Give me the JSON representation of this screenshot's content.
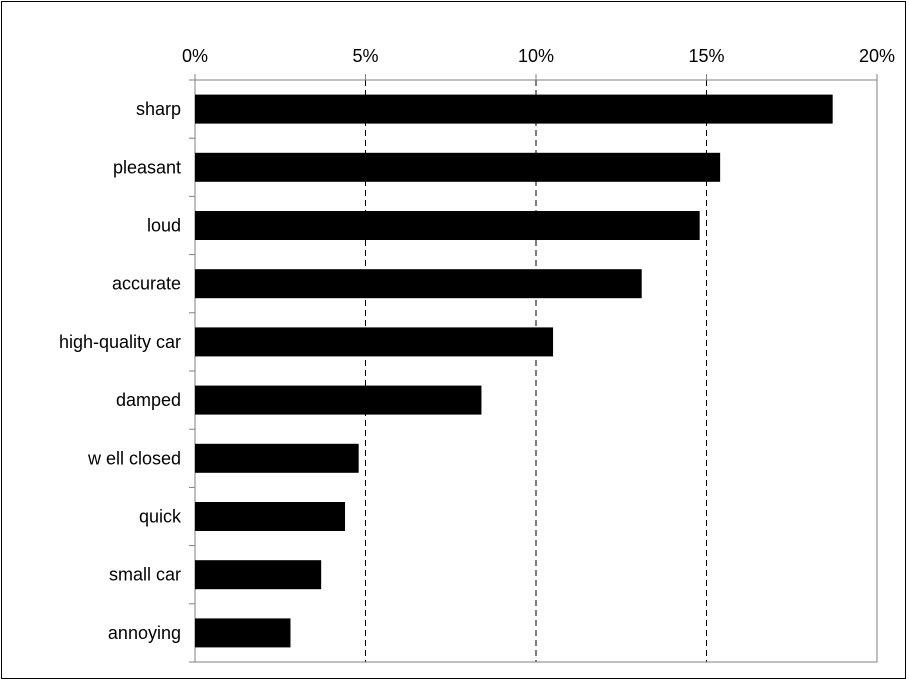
{
  "chart_data": {
    "type": "bar",
    "orientation": "horizontal",
    "categories": [
      "sharp",
      "pleasant",
      "loud",
      "accurate",
      "high-quality car",
      "damped",
      "w ell closed",
      "quick",
      "small car",
      "annoying"
    ],
    "values": [
      0.187,
      0.154,
      0.148,
      0.131,
      0.105,
      0.084,
      0.048,
      0.044,
      0.037,
      0.028
    ],
    "xlim": [
      0,
      0.2
    ],
    "xticks": [
      0,
      0.05,
      0.1,
      0.15,
      0.2
    ],
    "xtick_labels": [
      "0%",
      "5%",
      "10%",
      "15%",
      "20%"
    ],
    "x_axis_position": "top",
    "grid": "vertical dashed",
    "legend": "none",
    "title": "",
    "xlabel": "",
    "ylabel": "",
    "bar_color": "#000000"
  }
}
